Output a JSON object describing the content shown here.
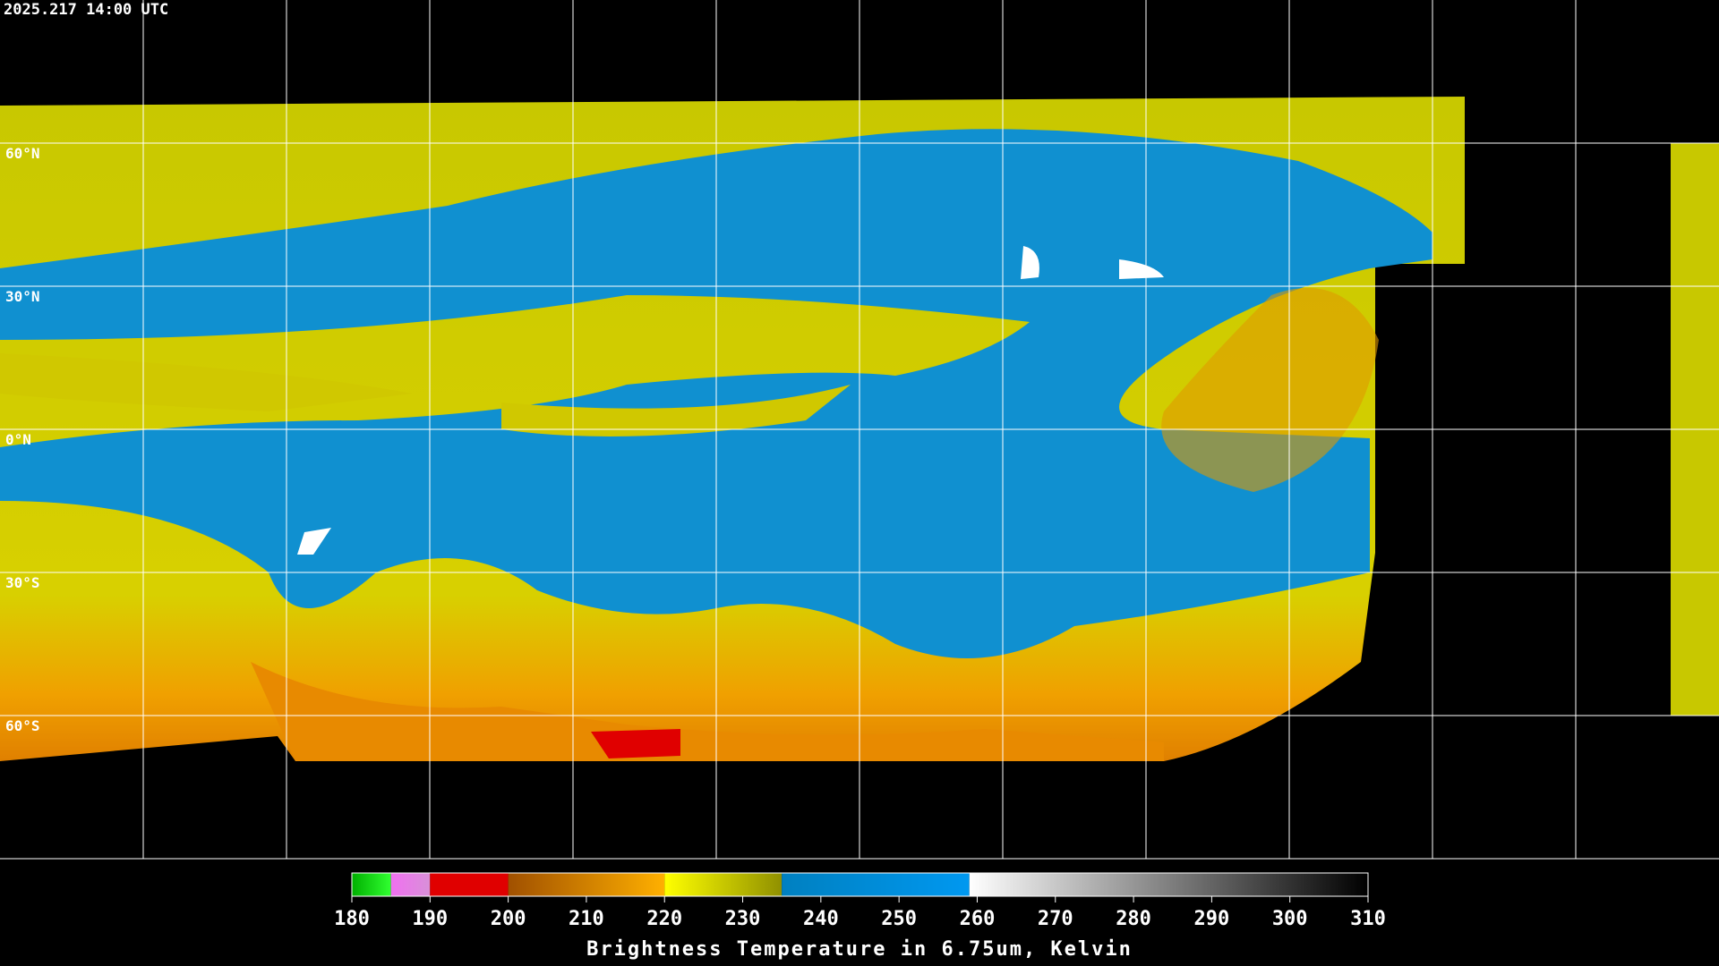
{
  "header": {
    "timestamp": "2025.217 14:00 UTC"
  },
  "map": {
    "lat_labels": [
      "60°N",
      "30°N",
      "0°N",
      "30°S",
      "60°S"
    ]
  },
  "colorbar": {
    "label": "Brightness Temperature in 6.75um, Kelvin",
    "lim": [
      180,
      310
    ],
    "ticks": [
      180,
      190,
      200,
      210,
      220,
      230,
      240,
      250,
      260,
      270,
      280,
      290,
      300,
      310
    ],
    "segments": [
      {
        "from": 180,
        "to": 185,
        "colors": [
          "#00b000",
          "#30ff30"
        ]
      },
      {
        "from": 185,
        "to": 190,
        "colors": [
          "#f070f0",
          "#d890d8"
        ]
      },
      {
        "from": 190,
        "to": 200,
        "colors": [
          "#e00000",
          "#e00000"
        ]
      },
      {
        "from": 200,
        "to": 220,
        "colors": [
          "#a05000",
          "#ffb000"
        ]
      },
      {
        "from": 220,
        "to": 235,
        "colors": [
          "#ffff00",
          "#909000"
        ]
      },
      {
        "from": 235,
        "to": 259,
        "colors": [
          "#0080c0",
          "#0098f0"
        ]
      },
      {
        "from": 259,
        "to": 310,
        "colors": [
          "#ffffff",
          "#000000"
        ]
      }
    ]
  }
}
